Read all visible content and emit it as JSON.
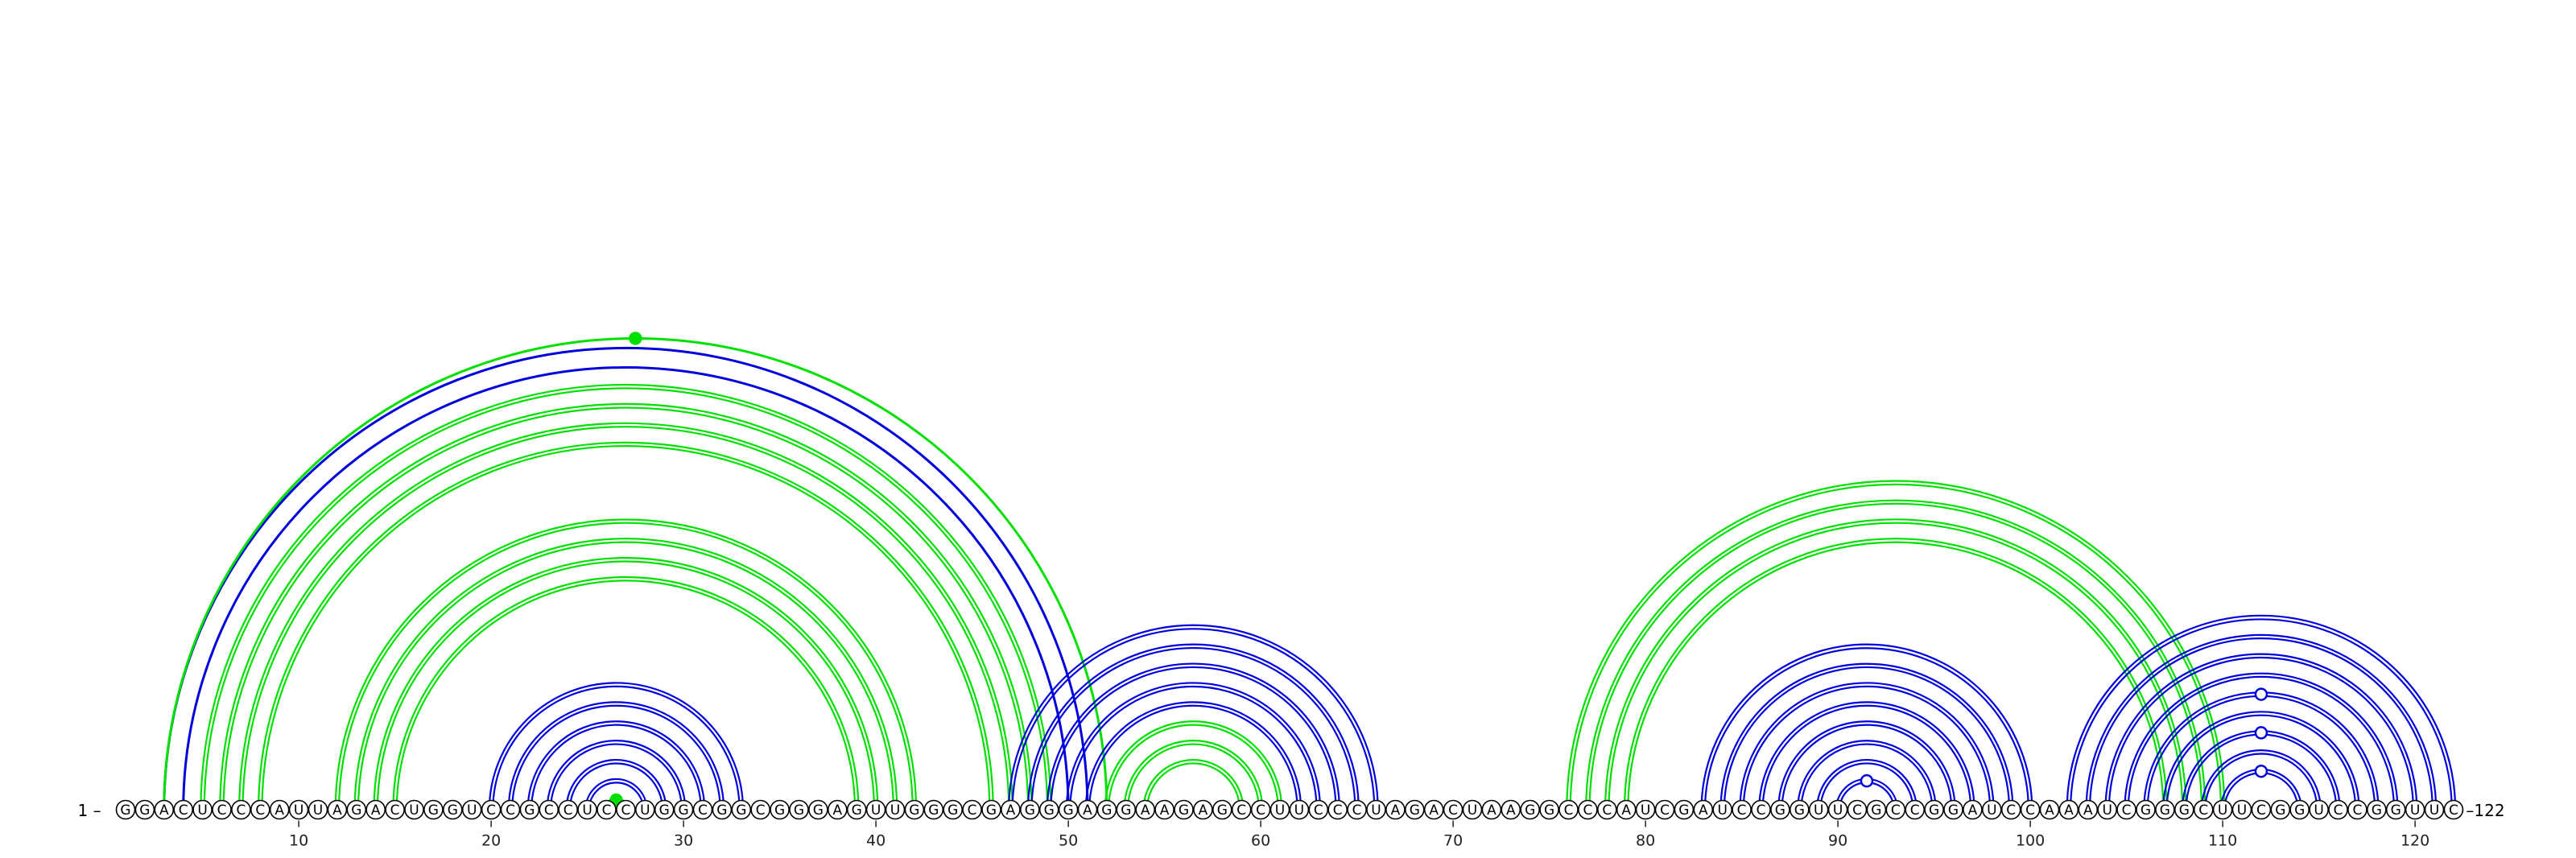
{
  "sequence": "GGACUCCCAUUAGACUGGUCCGCCUCCUGGCGGCGGGAGUUGGGCGAGGGAGGAAGAGCCUUCCCUAGACUAAGGCCCAUCGAUCCGGUUCGCCGGAUCCAAAUCGGGCUUCGGUCCGGUUC",
  "start_label": "1 –",
  "end_label": "–122",
  "ticks": [
    10,
    20,
    30,
    40,
    50,
    60,
    70,
    80,
    90,
    100,
    110,
    120
  ],
  "colors": {
    "blue": "#0000dd",
    "green": "#00e000"
  },
  "arc_groups": [
    {
      "color": "blue",
      "double": false,
      "pairs": [
        [
          3,
          51
        ],
        [
          4,
          50
        ]
      ]
    },
    {
      "color": "green",
      "double": true,
      "pairs": [
        [
          5,
          49
        ],
        [
          6,
          48
        ],
        [
          7,
          47
        ],
        [
          8,
          46
        ]
      ]
    },
    {
      "color": "green",
      "double": true,
      "pairs": [
        [
          12,
          42
        ],
        [
          13,
          41
        ],
        [
          14,
          40
        ],
        [
          15,
          39
        ]
      ]
    },
    {
      "color": "green",
      "double": false,
      "pairs": [
        [
          3,
          52
        ]
      ]
    },
    {
      "color": "blue",
      "double": true,
      "pairs": [
        [
          20,
          33
        ],
        [
          21,
          32
        ],
        [
          22,
          31
        ],
        [
          23,
          30
        ],
        [
          24,
          29
        ],
        [
          25,
          28
        ]
      ]
    },
    {
      "color": "green",
      "double": true,
      "pairs": [
        [
          26,
          27
        ]
      ]
    },
    {
      "color": "blue",
      "double": true,
      "pairs": [
        [
          47,
          66
        ],
        [
          48,
          65
        ],
        [
          49,
          64
        ],
        [
          50,
          63
        ],
        [
          51,
          62
        ]
      ]
    },
    {
      "color": "green",
      "double": true,
      "pairs": [
        [
          52,
          61
        ],
        [
          53,
          60
        ],
        [
          54,
          59
        ]
      ]
    },
    {
      "color": "green",
      "double": true,
      "pairs": [
        [
          76,
          110
        ],
        [
          77,
          109
        ],
        [
          78,
          108
        ],
        [
          79,
          107
        ]
      ]
    },
    {
      "color": "blue",
      "double": true,
      "pairs": [
        [
          83,
          100
        ],
        [
          84,
          99
        ],
        [
          85,
          98
        ],
        [
          86,
          97
        ],
        [
          87,
          96
        ],
        [
          88,
          95
        ],
        [
          89,
          94
        ],
        [
          90,
          93
        ]
      ]
    },
    {
      "color": "blue",
      "double": true,
      "pairs": [
        [
          102,
          122
        ],
        [
          103,
          121
        ],
        [
          104,
          120
        ],
        [
          105,
          119
        ],
        [
          106,
          118
        ],
        [
          107,
          117
        ],
        [
          108,
          116
        ],
        [
          109,
          115
        ],
        [
          110,
          114
        ]
      ]
    }
  ],
  "dots": [
    {
      "pair": [
        3,
        52
      ],
      "color": "green",
      "filled": true
    },
    {
      "pair": [
        26,
        27
      ],
      "color": "green",
      "filled": true
    },
    {
      "pair": [
        90,
        93
      ],
      "color": "blue",
      "filled": false
    },
    {
      "pair": [
        110,
        114
      ],
      "color": "blue",
      "filled": false
    },
    {
      "pair": [
        108,
        116
      ],
      "color": "blue",
      "filled": false
    },
    {
      "pair": [
        106,
        118
      ],
      "color": "blue",
      "filled": false
    }
  ]
}
